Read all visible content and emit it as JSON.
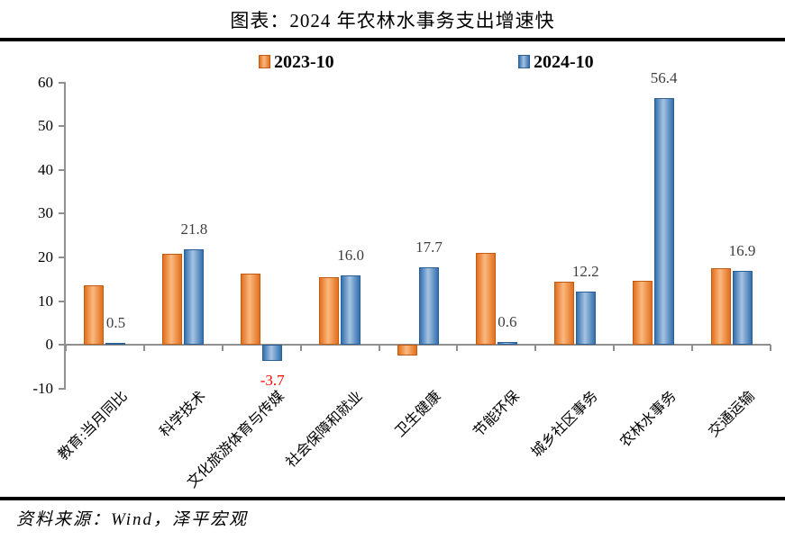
{
  "title": "图表：2024 年农林水事务支出增速快",
  "footer": "资料来源：Wind，泽平宏观",
  "chart_data": {
    "type": "bar",
    "title": "图表：2024 年农林水事务支出增速快",
    "xlabel": "",
    "ylabel": "",
    "categories": [
      "教育:当月同比",
      "科学技术",
      "文化旅游体育与传媒",
      "社会保障和就业",
      "卫生健康",
      "节能环保",
      "城乡社区事务",
      "农林水事务",
      "交通运输"
    ],
    "series": [
      {
        "name": "2023-10",
        "color": "#e87e2e",
        "color_edge": "#e3701d",
        "color_light": "#fab980",
        "color_border": "#c25c13",
        "values": [
          13.6,
          20.8,
          16.4,
          15.5,
          -2.4,
          21.1,
          14.4,
          14.7,
          17.5
        ]
      },
      {
        "name": "2024-10",
        "color": "#4f81bd",
        "color_edge": "#3370b0",
        "color_light": "#a6c3e1",
        "color_border": "#2d5f95",
        "values": [
          0.5,
          21.8,
          -3.7,
          16.0,
          17.7,
          0.6,
          12.2,
          56.4,
          16.9
        ],
        "labels": [
          "0.5",
          "21.8",
          "-3.7",
          "16.0",
          "17.7",
          "0.6",
          "12.2",
          "56.4",
          "16.9"
        ]
      }
    ],
    "ylim": [
      -10,
      60
    ],
    "yticks": [
      60,
      50,
      40,
      30,
      20,
      10,
      0,
      -10
    ],
    "grid": false,
    "legend_position": "top",
    "label_color": "#3f3f3f",
    "negative_label_color": "#ff0000",
    "axis_color": "#8f8f8f"
  }
}
